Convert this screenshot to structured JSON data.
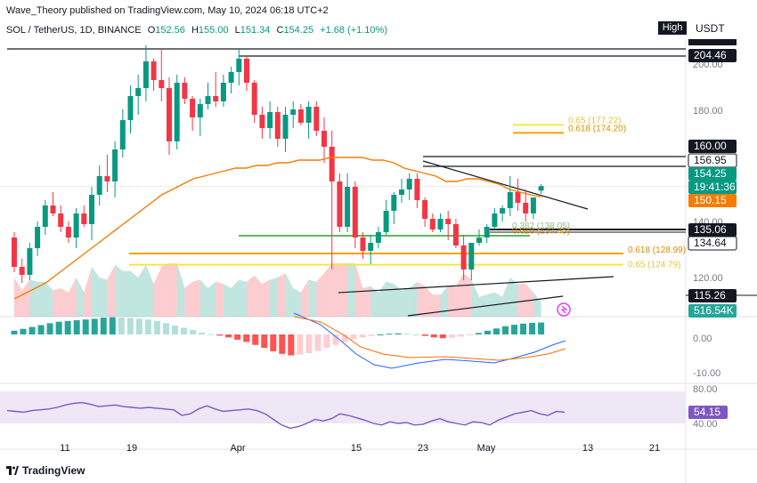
{
  "publisher_line": "Wave_Theory published on TradingView.com, May 10, 2024 06:18 UTC+2",
  "symbol_line": {
    "symbol": "SOL / TetherUS, 1D, BINANCE",
    "open_label": "O",
    "open": "152.56",
    "high_label": "H",
    "high": "155.00",
    "low_label": "L",
    "low": "151.34",
    "close_label": "C",
    "close": "154.25",
    "change": "+1.68 (+1.10%)"
  },
  "controls": {
    "high_button": "High",
    "currency": "USDT"
  },
  "footer": {
    "brand": "TradingView"
  },
  "chart_data": [
    {
      "type": "candlestick",
      "panel": "price",
      "y_axis_ticks": [
        "200.00",
        "180.00",
        "140.00",
        "120.00"
      ],
      "ylim": [
        108,
        212
      ],
      "x_tick_labels": [
        "11",
        "19",
        "Apr",
        "15",
        "23",
        "May",
        "13",
        "21"
      ],
      "candles": [
        [
          135,
          137,
          122,
          124
        ],
        [
          124,
          127,
          118,
          121
        ],
        [
          121,
          133,
          119,
          131
        ],
        [
          131,
          141,
          128,
          139
        ],
        [
          139,
          149,
          136,
          147
        ],
        [
          147,
          152,
          143,
          144
        ],
        [
          144,
          147,
          137,
          139
        ],
        [
          139,
          141,
          133,
          135
        ],
        [
          135,
          146,
          131,
          144
        ],
        [
          144,
          147,
          139,
          140
        ],
        [
          140,
          154,
          134,
          151
        ],
        [
          151,
          162,
          147,
          158
        ],
        [
          158,
          166,
          152,
          156
        ],
        [
          156,
          171,
          150,
          168
        ],
        [
          168,
          183,
          165,
          179
        ],
        [
          179,
          192,
          174,
          188
        ],
        [
          188,
          196,
          181,
          191
        ],
        [
          191,
          207,
          186,
          201
        ],
        [
          201,
          202,
          190,
          194
        ],
        [
          194,
          206,
          186,
          191
        ],
        [
          191,
          195,
          166,
          171
        ],
        [
          171,
          196,
          168,
          193
        ],
        [
          193,
          195,
          185,
          187
        ],
        [
          187,
          188,
          175,
          180
        ],
        [
          180,
          187,
          173,
          185
        ],
        [
          185,
          193,
          183,
          188
        ],
        [
          188,
          197,
          184,
          186
        ],
        [
          186,
          196,
          184,
          193
        ],
        [
          193,
          199,
          189,
          197
        ],
        [
          197,
          206,
          192,
          202
        ],
        [
          202,
          203,
          190,
          193
        ],
        [
          193,
          194,
          178,
          181
        ],
        [
          181,
          184,
          172,
          176
        ],
        [
          176,
          186,
          172,
          182
        ],
        [
          182,
          184,
          169,
          172
        ],
        [
          172,
          184,
          167,
          181
        ],
        [
          181,
          186,
          176,
          183
        ],
        [
          183,
          185,
          177,
          178
        ],
        [
          178,
          186,
          172,
          184
        ],
        [
          184,
          186,
          173,
          175
        ],
        [
          175,
          180,
          163,
          169
        ],
        [
          169,
          175,
          123,
          156
        ],
        [
          156,
          159,
          137,
          139
        ],
        [
          139,
          159,
          137,
          154
        ],
        [
          154,
          156,
          131,
          135
        ],
        [
          135,
          137,
          127,
          130
        ],
        [
          130,
          136,
          125,
          133
        ],
        [
          133,
          139,
          131,
          137
        ],
        [
          137,
          149,
          136,
          145
        ],
        [
          145,
          152,
          140,
          151
        ],
        [
          151,
          157,
          148,
          153
        ],
        [
          153,
          159,
          149,
          157
        ],
        [
          157,
          159,
          146,
          149
        ],
        [
          149,
          150,
          139,
          142
        ],
        [
          142,
          144,
          137,
          138
        ],
        [
          138,
          144,
          137,
          142
        ],
        [
          142,
          145,
          134,
          140
        ],
        [
          140,
          142,
          131,
          132
        ],
        [
          132,
          136,
          119,
          123
        ],
        [
          123,
          133,
          119,
          133
        ],
        [
          133,
          138,
          132,
          135
        ],
        [
          135,
          140,
          133,
          139
        ],
        [
          139,
          146,
          138,
          144
        ],
        [
          144,
          147,
          141,
          146
        ],
        [
          146,
          158,
          143,
          152
        ],
        [
          152,
          157,
          145,
          148
        ],
        [
          148,
          153,
          141,
          144
        ],
        [
          144,
          150,
          142,
          150
        ],
        [
          152.56,
          155.0,
          151.34,
          154.25
        ]
      ],
      "ema_series": [
        112,
        114,
        116,
        118,
        121,
        124,
        127,
        130,
        133,
        136,
        139,
        142,
        145,
        148,
        151,
        153,
        155,
        157,
        158,
        159,
        160,
        161,
        161,
        162,
        162,
        163,
        163,
        164,
        164,
        164,
        165,
        165,
        165,
        165,
        164,
        164,
        163,
        161,
        160,
        159,
        158,
        156,
        156,
        157,
        157,
        156,
        155,
        153,
        152,
        151,
        150.15
      ],
      "price_labels": [
        "204.46",
        "160.00",
        "156.95",
        "154.25",
        "19:41:36",
        "150.15",
        "135.06",
        "134.64",
        "115.26",
        "516.54K"
      ],
      "fib_levels": [
        {
          "label": "0.65 (177.22)",
          "value": 177.22,
          "color": "#f7e34a"
        },
        {
          "label": "0.618 (174.20)",
          "value": 174.2,
          "color": "#f5a300"
        },
        {
          "label": "0.618 (128.99)",
          "value": 128.99,
          "color": "#f5a300"
        },
        {
          "label": "0.65 (124.79)",
          "value": 124.79,
          "color": "#f7e34a"
        },
        {
          "label": "0.618 (137.45)",
          "value": 137.45,
          "color": "#f5a300"
        },
        {
          "label": "0.382 (138.05)",
          "value": 138.05,
          "color": "#8bbf8b"
        }
      ]
    },
    {
      "type": "macd",
      "panel": "macd",
      "y_axis_ticks": [
        "0.00",
        "-10.00"
      ],
      "histogram": [
        1,
        1.5,
        2,
        2.5,
        3,
        3.4,
        3.6,
        3.8,
        4,
        4.2,
        4.5,
        4.6,
        4.5,
        4.4,
        4.2,
        4,
        3.6,
        3,
        2.4,
        1.8,
        1.2,
        0.5,
        0.1,
        -0.3,
        -0.8,
        -1.4,
        -2,
        -2.8,
        -3.6,
        -4.5,
        -5.2,
        -5.6,
        -5.4,
        -5,
        -4.4,
        -3.6,
        -2.8,
        -2,
        -1.3,
        -0.8,
        -0.4,
        0,
        0.2,
        0.3,
        0.2,
        0,
        -0.4,
        -0.8,
        -1,
        -0.9,
        -0.6,
        -0.2,
        0.4,
        1.0,
        1.6,
        2.2,
        2.6,
        2.9,
        3.1,
        3.2
      ]
    },
    {
      "type": "rsi",
      "panel": "rsi",
      "y_axis_ticks": [
        "80.00",
        "40.00"
      ],
      "last_value": "54.15",
      "values": [
        56,
        55,
        54,
        56,
        57,
        58,
        60,
        63,
        65,
        66,
        64,
        61,
        62,
        63,
        61,
        60,
        59,
        60,
        59,
        58,
        57,
        50,
        52,
        58,
        62,
        58,
        55,
        56,
        57,
        58,
        56,
        52,
        45,
        38,
        34,
        36,
        40,
        45,
        43,
        46,
        52,
        50,
        47,
        44,
        40,
        38,
        42,
        40,
        41,
        38,
        39,
        43,
        46,
        42,
        40,
        38,
        42,
        41,
        38,
        44,
        48,
        52,
        54,
        56,
        52,
        50,
        55,
        54
      ]
    }
  ],
  "colors": {
    "up": "#089981",
    "down": "#f23645",
    "ema": "#f57c00",
    "rsi": "#7e57c2",
    "rsi_band": "#ede7f6"
  }
}
